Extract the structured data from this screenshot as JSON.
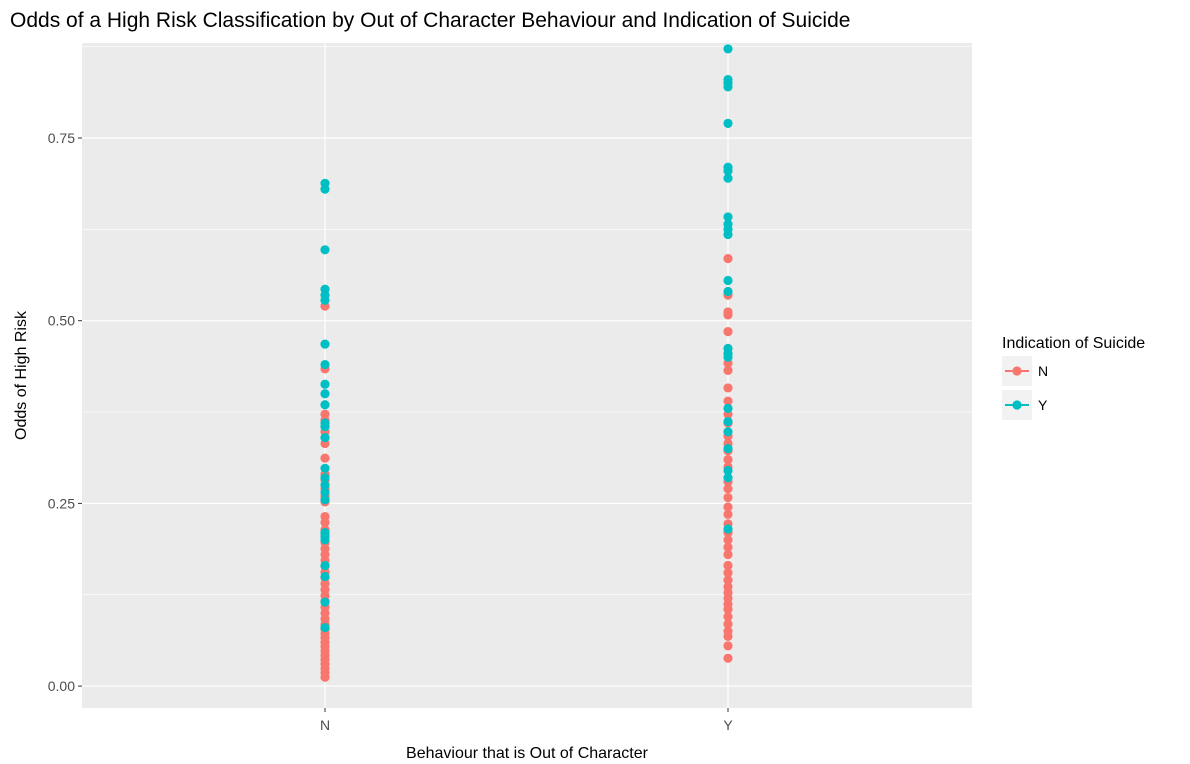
{
  "chart_data": {
    "type": "scatter",
    "title": "Odds of a High Risk Classification by Out of Character Behaviour and Indication of Suicide",
    "xlabel": "Behaviour that is Out of Character",
    "ylabel": "Odds of High Risk",
    "categories": [
      "N",
      "Y"
    ],
    "ylim": [
      -0.03,
      0.88
    ],
    "yticks": [
      0.0,
      0.25,
      0.5,
      0.75
    ],
    "ytick_labels": [
      "0.00",
      "0.25",
      "0.50",
      "0.75"
    ],
    "grid": true,
    "legend": {
      "title": "Indication of Suicide",
      "position": "right",
      "entries": [
        "N",
        "Y"
      ]
    },
    "colors": {
      "N": "#F8766D",
      "Y": "#00BFC4",
      "panel": "#EBEBEB",
      "grid": "#FFFFFF"
    },
    "series": [
      {
        "name": "N",
        "points": [
          [
            "N",
            0.012
          ],
          [
            "N",
            0.018
          ],
          [
            "N",
            0.024
          ],
          [
            "N",
            0.03
          ],
          [
            "N",
            0.036
          ],
          [
            "N",
            0.042
          ],
          [
            "N",
            0.048
          ],
          [
            "N",
            0.054
          ],
          [
            "N",
            0.06
          ],
          [
            "N",
            0.066
          ],
          [
            "N",
            0.072
          ],
          [
            "N",
            0.078
          ],
          [
            "N",
            0.085
          ],
          [
            "N",
            0.092
          ],
          [
            "N",
            0.1
          ],
          [
            "N",
            0.108
          ],
          [
            "N",
            0.116
          ],
          [
            "N",
            0.124
          ],
          [
            "N",
            0.132
          ],
          [
            "N",
            0.14
          ],
          [
            "N",
            0.148
          ],
          [
            "N",
            0.156
          ],
          [
            "N",
            0.164
          ],
          [
            "N",
            0.172
          ],
          [
            "N",
            0.18
          ],
          [
            "N",
            0.188
          ],
          [
            "N",
            0.196
          ],
          [
            "N",
            0.206
          ],
          [
            "N",
            0.214
          ],
          [
            "N",
            0.224
          ],
          [
            "N",
            0.232
          ],
          [
            "N",
            0.252
          ],
          [
            "N",
            0.26
          ],
          [
            "N",
            0.27
          ],
          [
            "N",
            0.282
          ],
          [
            "N",
            0.29
          ],
          [
            "N",
            0.312
          ],
          [
            "N",
            0.332
          ],
          [
            "N",
            0.348
          ],
          [
            "N",
            0.364
          ],
          [
            "N",
            0.372
          ],
          [
            "N",
            0.434
          ],
          [
            "N",
            0.52
          ],
          [
            "Y",
            0.038
          ],
          [
            "Y",
            0.055
          ],
          [
            "Y",
            0.068
          ],
          [
            "Y",
            0.075
          ],
          [
            "Y",
            0.085
          ],
          [
            "Y",
            0.095
          ],
          [
            "Y",
            0.105
          ],
          [
            "Y",
            0.112
          ],
          [
            "Y",
            0.12
          ],
          [
            "Y",
            0.128
          ],
          [
            "Y",
            0.136
          ],
          [
            "Y",
            0.145
          ],
          [
            "Y",
            0.155
          ],
          [
            "Y",
            0.165
          ],
          [
            "Y",
            0.18
          ],
          [
            "Y",
            0.19
          ],
          [
            "Y",
            0.2
          ],
          [
            "Y",
            0.21
          ],
          [
            "Y",
            0.222
          ],
          [
            "Y",
            0.235
          ],
          [
            "Y",
            0.245
          ],
          [
            "Y",
            0.258
          ],
          [
            "Y",
            0.27
          ],
          [
            "Y",
            0.28
          ],
          [
            "Y",
            0.3
          ],
          [
            "Y",
            0.31
          ],
          [
            "Y",
            0.322
          ],
          [
            "Y",
            0.332
          ],
          [
            "Y",
            0.342
          ],
          [
            "Y",
            0.36
          ],
          [
            "Y",
            0.372
          ],
          [
            "Y",
            0.39
          ],
          [
            "Y",
            0.408
          ],
          [
            "Y",
            0.432
          ],
          [
            "Y",
            0.442
          ],
          [
            "Y",
            0.462
          ],
          [
            "Y",
            0.485
          ],
          [
            "Y",
            0.508
          ],
          [
            "Y",
            0.512
          ],
          [
            "Y",
            0.535
          ],
          [
            "Y",
            0.585
          ]
        ]
      },
      {
        "name": "Y",
        "points": [
          [
            "N",
            0.08
          ],
          [
            "N",
            0.115
          ],
          [
            "N",
            0.15
          ],
          [
            "N",
            0.165
          ],
          [
            "N",
            0.2
          ],
          [
            "N",
            0.205
          ],
          [
            "N",
            0.21
          ],
          [
            "N",
            0.255
          ],
          [
            "N",
            0.265
          ],
          [
            "N",
            0.275
          ],
          [
            "N",
            0.285
          ],
          [
            "N",
            0.298
          ],
          [
            "N",
            0.34
          ],
          [
            "N",
            0.355
          ],
          [
            "N",
            0.36
          ],
          [
            "N",
            0.385
          ],
          [
            "N",
            0.4
          ],
          [
            "N",
            0.413
          ],
          [
            "N",
            0.44
          ],
          [
            "N",
            0.468
          ],
          [
            "N",
            0.528
          ],
          [
            "N",
            0.535
          ],
          [
            "N",
            0.543
          ],
          [
            "N",
            0.597
          ],
          [
            "N",
            0.68
          ],
          [
            "N",
            0.688
          ],
          [
            "Y",
            0.215
          ],
          [
            "Y",
            0.285
          ],
          [
            "Y",
            0.295
          ],
          [
            "Y",
            0.325
          ],
          [
            "Y",
            0.348
          ],
          [
            "Y",
            0.362
          ],
          [
            "Y",
            0.38
          ],
          [
            "Y",
            0.45
          ],
          [
            "Y",
            0.455
          ],
          [
            "Y",
            0.462
          ],
          [
            "Y",
            0.54
          ],
          [
            "Y",
            0.555
          ],
          [
            "Y",
            0.618
          ],
          [
            "Y",
            0.625
          ],
          [
            "Y",
            0.632
          ],
          [
            "Y",
            0.642
          ],
          [
            "Y",
            0.695
          ],
          [
            "Y",
            0.705
          ],
          [
            "Y",
            0.71
          ],
          [
            "Y",
            0.77
          ],
          [
            "Y",
            0.82
          ],
          [
            "Y",
            0.825
          ],
          [
            "Y",
            0.83
          ],
          [
            "Y",
            0.872
          ]
        ]
      }
    ]
  }
}
